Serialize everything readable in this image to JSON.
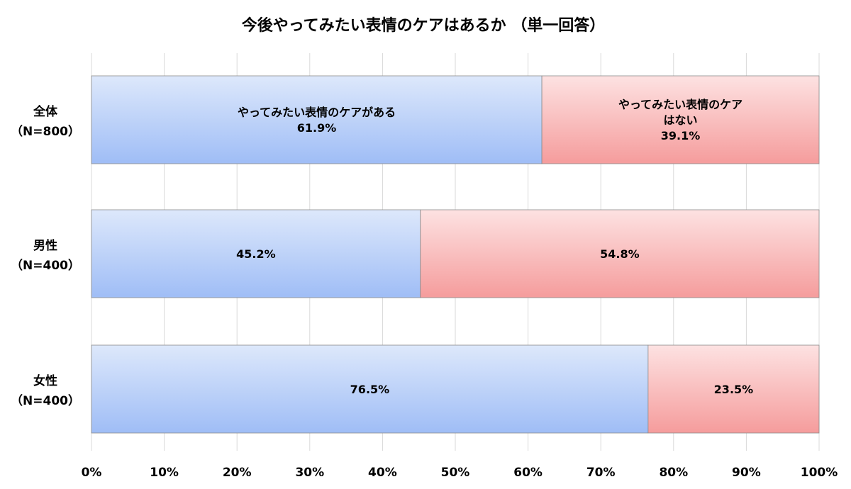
{
  "chart_data": {
    "type": "bar",
    "orientation": "horizontal",
    "stacked": true,
    "title": "今後やってみたい表情のケアはあるか （単一回答）",
    "categories": [
      [
        "全体",
        "（N=800）"
      ],
      [
        "男性",
        "（N=400）"
      ],
      [
        "女性",
        "（N=400）"
      ]
    ],
    "series": [
      {
        "name": "やってみたい表情のケアがある",
        "values": [
          61.9,
          45.2,
          76.5
        ],
        "labels": [
          "61.9%",
          "45.2%",
          "76.5%"
        ],
        "color_top": "#dde8fb",
        "color_bottom": "#9fbdf6"
      },
      {
        "name": "やってみたい表情のケアはない",
        "values": [
          39.1,
          54.8,
          23.5
        ],
        "labels": [
          "39.1%",
          "54.8%",
          "23.5%"
        ],
        "color_top": "#fde2e2",
        "color_bottom": "#f59c9c"
      }
    ],
    "first_bar_labels": [
      [
        "やってみたい表情のケアがある",
        "61.9%"
      ],
      [
        "やってみたい表情のケア",
        "はない",
        "39.1%"
      ]
    ],
    "xlim": [
      0,
      100
    ],
    "xticks": [
      "0%",
      "10%",
      "20%",
      "30%",
      "40%",
      "50%",
      "60%",
      "70%",
      "80%",
      "90%",
      "100%"
    ],
    "grid": true,
    "legend": "none"
  }
}
